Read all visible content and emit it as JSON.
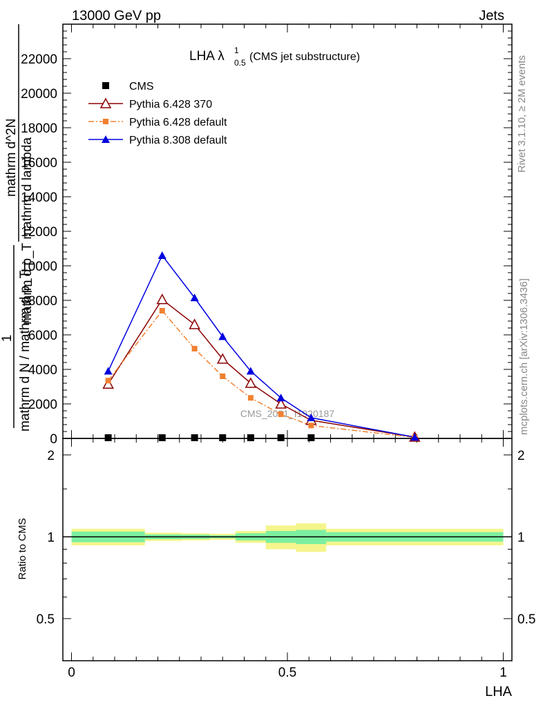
{
  "header": {
    "left": "13000 GeV pp",
    "right": "Jets"
  },
  "side_labels": {
    "rivet": "Rivet 3.1.10, ≥ 2M events",
    "mcplots": "mcplots.cern.ch [arXiv:1306.3436]"
  },
  "plot_title": {
    "main": "LHA λ",
    "sup": "1",
    "sub": "0.5",
    "rest": " (CMS jet substructure)"
  },
  "watermark": "CMS_2021_I1920187",
  "ylabel_upper": {
    "frac1_num": "1",
    "frac1_den": "mathrm d N / mathrm d p_T",
    "frac2_num": "mathrm d^2N",
    "frac2_den": "mathrm d p_T mathrm d lambda"
  },
  "ylabel_lower": "Ratio to CMS",
  "xlabel": "LHA",
  "colors": {
    "cms": "#000000",
    "py6_370": "#8b0000",
    "py6_default": "#f08030",
    "py8_default": "#0000e0",
    "band_outer": "#f5f58c",
    "band_inner": "#7cf0a0"
  },
  "chart_data": [
    {
      "type": "line",
      "panel": "main",
      "x": [
        0.085,
        0.21,
        0.285,
        0.35,
        0.415,
        0.485,
        0.555,
        0.795
      ],
      "xlim": [
        -0.02,
        1.02
      ],
      "ylim": [
        0,
        24000
      ],
      "yticks": [
        0,
        2000,
        4000,
        6000,
        8000,
        10000,
        12000,
        14000,
        16000,
        18000,
        20000,
        22000
      ],
      "yticklabels": [
        "0",
        "2000",
        "4000",
        "6000",
        "8000",
        "10000",
        "12000",
        "14000",
        "16000",
        "18000",
        "20000",
        "22000"
      ],
      "legend_position": "top-left",
      "series": [
        {
          "key": "cms",
          "name": "CMS",
          "marker": "square",
          "line": "none",
          "values": [
            40,
            40,
            40,
            40,
            40,
            40,
            40,
            null
          ]
        },
        {
          "key": "py6_370",
          "name": "Pythia 6.428 370",
          "marker": "triangle-open",
          "line": "solid",
          "values": [
            3150,
            8050,
            6600,
            4600,
            3200,
            2000,
            1050,
            80
          ]
        },
        {
          "key": "py6_default",
          "name": "Pythia 6.428 default",
          "marker": "square-small",
          "line": "dashdot",
          "values": [
            3350,
            7400,
            5200,
            3600,
            2350,
            1400,
            750,
            60
          ]
        },
        {
          "key": "py8_default",
          "name": "Pythia 8.308 default",
          "marker": "triangle-filled",
          "line": "solid",
          "values": [
            3900,
            10600,
            8150,
            5900,
            3900,
            2350,
            1200,
            70
          ]
        }
      ]
    },
    {
      "type": "area",
      "panel": "ratio",
      "xlim": [
        -0.02,
        1.02
      ],
      "ylim": [
        0.35,
        2.3
      ],
      "yticks": [
        0.5,
        1,
        2
      ],
      "yticklabels": [
        "0.5",
        "1",
        "2"
      ],
      "xticks": [
        0,
        0.5,
        1
      ],
      "xticklabels": [
        "0",
        "0.5",
        "1"
      ],
      "bins": [
        {
          "lo": 0.0,
          "hi": 0.17,
          "outer": 0.07,
          "inner": 0.045
        },
        {
          "lo": 0.17,
          "hi": 0.255,
          "outer": 0.035,
          "inner": 0.02
        },
        {
          "lo": 0.255,
          "hi": 0.32,
          "outer": 0.03,
          "inner": 0.018
        },
        {
          "lo": 0.32,
          "hi": 0.38,
          "outer": 0.025,
          "inner": 0.012
        },
        {
          "lo": 0.38,
          "hi": 0.45,
          "outer": 0.05,
          "inner": 0.03
        },
        {
          "lo": 0.45,
          "hi": 0.52,
          "outer": 0.1,
          "inner": 0.05
        },
        {
          "lo": 0.52,
          "hi": 0.59,
          "outer": 0.12,
          "inner": 0.06
        },
        {
          "lo": 0.59,
          "hi": 1.0,
          "outer": 0.07,
          "inner": 0.04
        }
      ],
      "reference_value": 1
    }
  ]
}
